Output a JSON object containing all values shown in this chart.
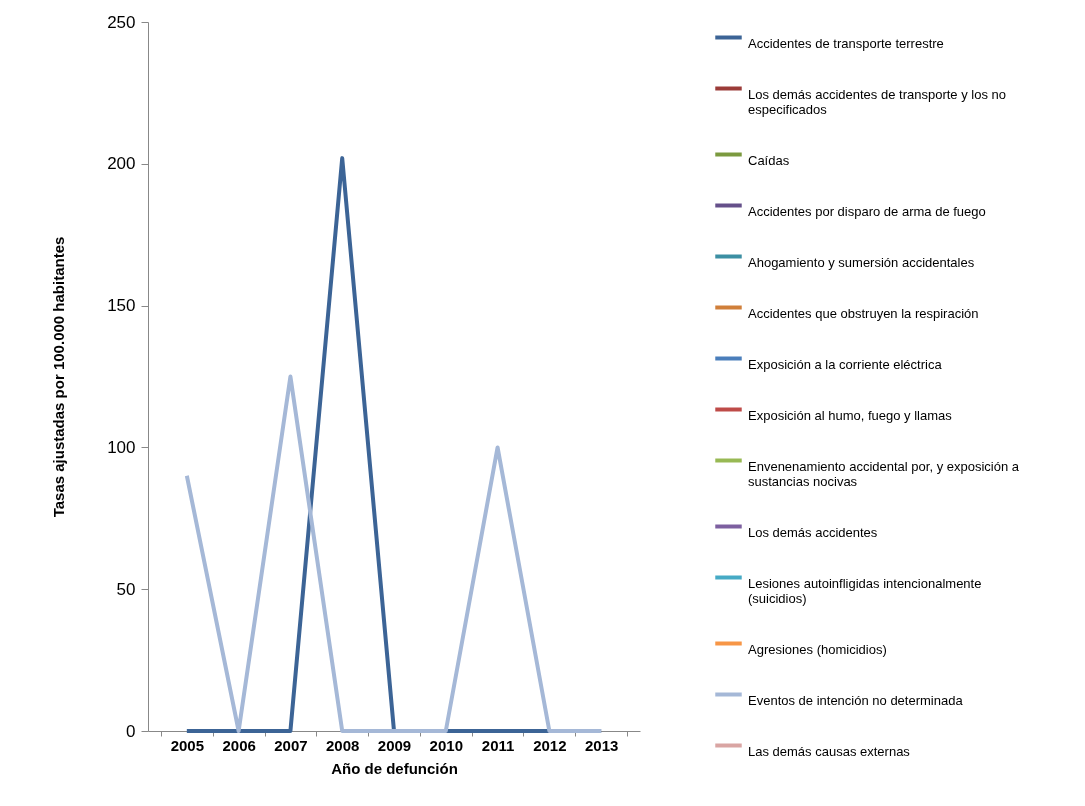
{
  "chart_data": {
    "type": "line",
    "xlabel": "Año de defunción",
    "ylabel": "Tasas ajustadas por 100.000 habitantes",
    "categories": [
      "2005",
      "2006",
      "2007",
      "2008",
      "2009",
      "2010",
      "2011",
      "2012",
      "2013"
    ],
    "ylim": [
      0,
      250
    ],
    "yticks": [
      0,
      50,
      100,
      150,
      200,
      250
    ],
    "grid": false,
    "legend": "right",
    "marker": "none",
    "line_style": "solid",
    "series": [
      {
        "name": "Accidentes de transporte terrestre",
        "color": "#3c6496",
        "values": [
          0,
          0,
          0,
          202,
          0,
          0,
          0,
          0,
          0
        ]
      },
      {
        "name": "Los demás accidentes de transporte y los no especificados",
        "color": "#9b3b38",
        "values": [
          null,
          null,
          null,
          null,
          null,
          null,
          null,
          null,
          null
        ]
      },
      {
        "name": "Caídas",
        "color": "#7b9a3f",
        "values": [
          null,
          null,
          null,
          null,
          null,
          null,
          null,
          null,
          null
        ]
      },
      {
        "name": "Accidentes por disparo de arma de fuego",
        "color": "#65508a",
        "values": [
          null,
          null,
          null,
          null,
          null,
          null,
          null,
          null,
          null
        ]
      },
      {
        "name": "Ahogamiento y sumersión accidentales",
        "color": "#3c8fa3",
        "values": [
          null,
          null,
          null,
          null,
          null,
          null,
          null,
          null,
          null
        ]
      },
      {
        "name": "Accidentes que obstruyen la respiración",
        "color": "#d07f3a",
        "values": [
          null,
          null,
          null,
          null,
          null,
          null,
          null,
          null,
          null
        ]
      },
      {
        "name": "Exposición a la corriente eléctrica",
        "color": "#4a7ebb",
        "values": [
          null,
          null,
          null,
          null,
          null,
          null,
          null,
          null,
          null
        ]
      },
      {
        "name": "Exposición al humo, fuego y llamas",
        "color": "#be4b48",
        "values": [
          null,
          null,
          null,
          null,
          null,
          null,
          null,
          null,
          null
        ]
      },
      {
        "name": "Envenenamiento accidental por, y exposición a sustancias nocivas",
        "color": "#98b954",
        "values": [
          null,
          null,
          null,
          null,
          null,
          null,
          null,
          null,
          null
        ]
      },
      {
        "name": "Los demás accidentes",
        "color": "#7d60a0",
        "values": [
          null,
          null,
          null,
          null,
          null,
          null,
          null,
          null,
          null
        ]
      },
      {
        "name": "Lesiones autoinfligidas intencionalmente (suicidios)",
        "color": "#46aac5",
        "values": [
          null,
          null,
          null,
          null,
          null,
          null,
          null,
          null,
          null
        ]
      },
      {
        "name": "Agresiones (homicidios)",
        "color": "#f79646",
        "values": [
          null,
          null,
          null,
          null,
          null,
          null,
          null,
          null,
          null
        ]
      },
      {
        "name": "Eventos de intención no determinada",
        "color": "#a5b8d7",
        "values": [
          90,
          0,
          125,
          0,
          0,
          0,
          100,
          0,
          0
        ]
      },
      {
        "name": "Las demás causas externas",
        "color": "#d9a5a3",
        "values": [
          null,
          null,
          null,
          null,
          null,
          null,
          null,
          null,
          null
        ]
      }
    ]
  }
}
